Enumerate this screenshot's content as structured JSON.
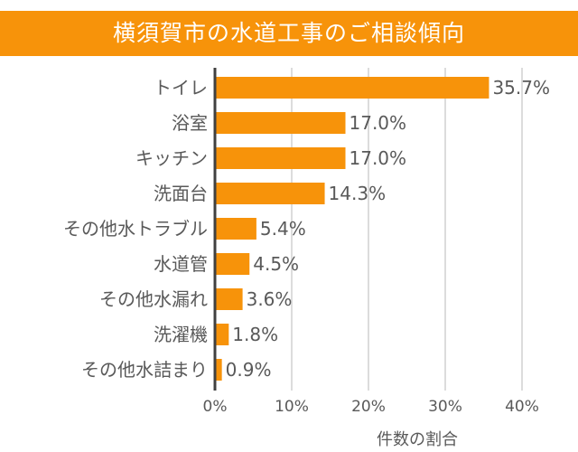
{
  "chart_data": {
    "type": "bar",
    "orientation": "horizontal",
    "title": "横須賀市の水道工事のご相談傾向",
    "xlabel": "件数の割合",
    "ylabel": "",
    "categories": [
      "トイレ",
      "浴室",
      "キッチン",
      "洗面台",
      "その他水トラブル",
      "水道管",
      "その他水漏れ",
      "洗濯機",
      "その他水詰まり"
    ],
    "values": [
      35.7,
      17.0,
      17.0,
      14.3,
      5.4,
      4.5,
      3.6,
      1.8,
      0.9
    ],
    "data_labels": [
      "35.7%",
      "17.0%",
      "17.0%",
      "14.3%",
      "5.4%",
      "4.5%",
      "3.6%",
      "1.8%",
      "0.9%"
    ],
    "xlim": [
      0,
      40
    ],
    "xticks": [
      "0%",
      "10%",
      "20%",
      "30%",
      "40%"
    ],
    "grid": true,
    "colors": {
      "bar": "#f7930a",
      "title_bg": "#f7930a",
      "text": "#595959",
      "grid": "#d0d0d0",
      "axis": "#404040"
    }
  }
}
